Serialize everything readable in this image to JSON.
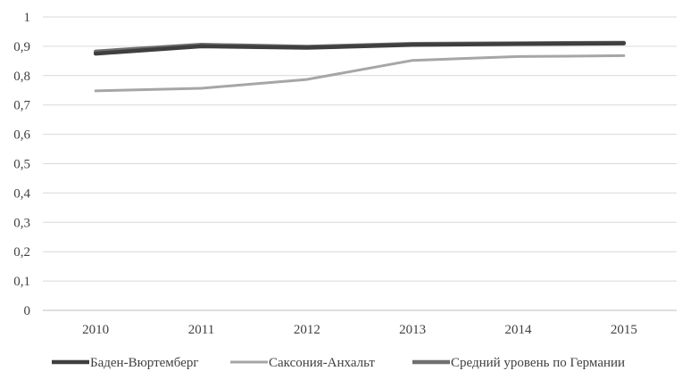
{
  "chart_data": {
    "type": "line",
    "categories": [
      "2010",
      "2011",
      "2012",
      "2013",
      "2014",
      "2015"
    ],
    "y_ticks": [
      "0",
      "0,1",
      "0,2",
      "0,3",
      "0,4",
      "0,5",
      "0,6",
      "0,7",
      "0,8",
      "0,9",
      "1"
    ],
    "ylim": [
      0,
      1
    ],
    "grid": true,
    "legend_position": "bottom",
    "series": [
      {
        "name": "Баден-Вюртемберг",
        "values": [
          0.875,
          0.9,
          0.895,
          0.905,
          0.908,
          0.91
        ],
        "color": "#3f3f3f"
      },
      {
        "name": "Саксония-Анхальт",
        "values": [
          0.748,
          0.757,
          0.787,
          0.852,
          0.865,
          0.868
        ],
        "color": "#a6a6a6"
      },
      {
        "name": "Средний уровень по Германии",
        "values": [
          0.882,
          0.905,
          0.898,
          0.908,
          0.91,
          0.912
        ],
        "color": "#6f6f6f"
      }
    ]
  }
}
